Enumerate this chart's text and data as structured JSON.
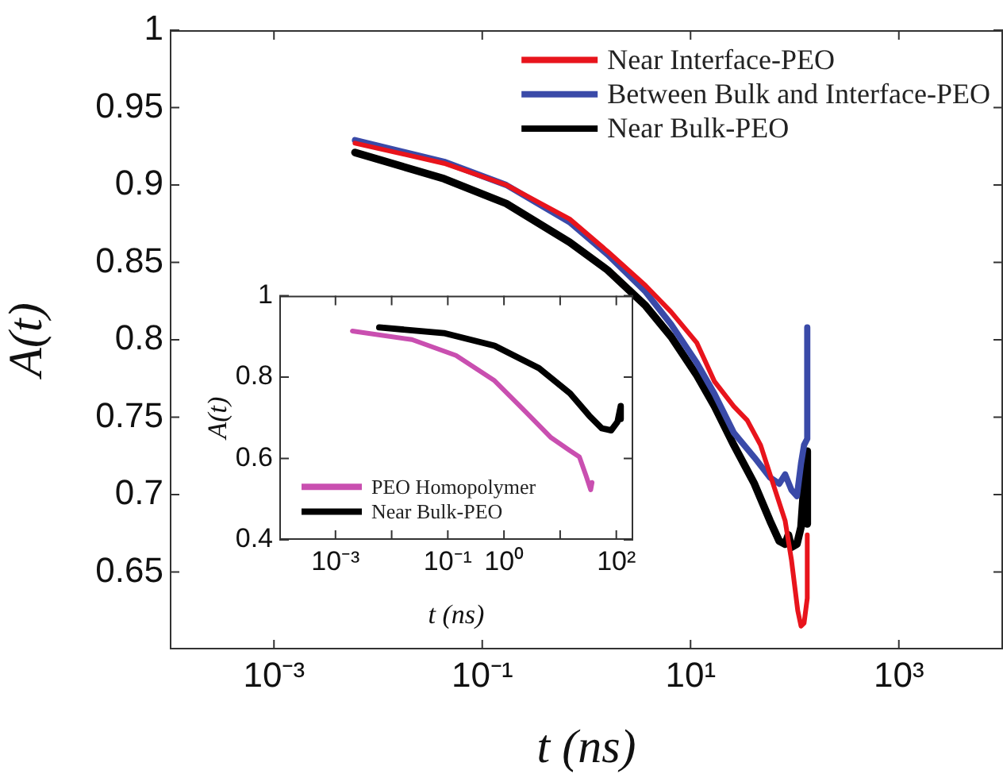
{
  "chart_data": [
    {
      "type": "line",
      "xlabel": "t (ns)",
      "ylabel": "A(t)",
      "log": "x",
      "xlim": [
        0.0001,
        10000
      ],
      "ylim": [
        0.6,
        1
      ],
      "xticks": [
        {
          "value": 0.001,
          "label": "10⁻³"
        },
        {
          "value": 0.1,
          "label": "10⁻¹"
        },
        {
          "value": 10,
          "label": "10¹"
        },
        {
          "value": 1000,
          "label": "10³"
        }
      ],
      "yticks": [
        0.65,
        0.7,
        0.75,
        0.8,
        0.85,
        0.9,
        0.95,
        1
      ],
      "grid": false,
      "legend": "top right",
      "marker": "none",
      "line_style": "solid",
      "series": [
        {
          "name": "Near Interface-PEO",
          "color": "#e8141c",
          "x": [
            0.006,
            0.043,
            0.17,
            0.69,
            1.6,
            3.7,
            6.5,
            11.5,
            17,
            26,
            35,
            47,
            62,
            81,
            93,
            107,
            115,
            123,
            132,
            132
          ],
          "values": [
            0.927,
            0.914,
            0.9,
            0.878,
            0.857,
            0.835,
            0.818,
            0.798,
            0.773,
            0.757,
            0.748,
            0.732,
            0.707,
            0.683,
            0.658,
            0.625,
            0.615,
            0.617,
            0.633,
            0.674
          ]
        },
        {
          "name": "Between Bulk and Interface-PEO",
          "color": "#3a4aa8",
          "x": [
            0.006,
            0.043,
            0.17,
            0.69,
            1.6,
            3.7,
            6.5,
            11.5,
            17,
            26,
            41,
            58,
            71,
            81,
            93,
            105,
            115,
            123,
            132,
            132
          ],
          "values": [
            0.929,
            0.915,
            0.9,
            0.876,
            0.855,
            0.831,
            0.81,
            0.785,
            0.765,
            0.74,
            0.724,
            0.711,
            0.707,
            0.713,
            0.703,
            0.699,
            0.72,
            0.732,
            0.736,
            0.808
          ]
        },
        {
          "name": "Near Bulk-PEO",
          "color": "#000000",
          "x": [
            0.006,
            0.043,
            0.17,
            0.69,
            1.6,
            3.7,
            6.5,
            11.5,
            17,
            26,
            41,
            58,
            71,
            81,
            87,
            93,
            105,
            115,
            123,
            132,
            132
          ],
          "values": [
            0.921,
            0.904,
            0.888,
            0.863,
            0.845,
            0.822,
            0.802,
            0.777,
            0.757,
            0.732,
            0.707,
            0.683,
            0.67,
            0.668,
            0.674,
            0.666,
            0.668,
            0.679,
            0.707,
            0.728,
            0.681
          ]
        }
      ]
    },
    {
      "type": "line",
      "xlabel": "t (ns)",
      "ylabel": "A(t)",
      "log": "x",
      "xlim": [
        0.0001,
        200
      ],
      "ylim": [
        0.4,
        1
      ],
      "xticks": [
        {
          "value": 0.001,
          "label": "10⁻³"
        },
        {
          "value": 0.01,
          "label": null
        },
        {
          "value": 0.1,
          "label": "10⁻¹"
        },
        {
          "value": 1,
          "label": "10⁰"
        },
        {
          "value": 10,
          "label": null
        },
        {
          "value": 100,
          "label": "10²"
        }
      ],
      "yticks": [
        0.4,
        0.6,
        0.8,
        1
      ],
      "grid": false,
      "legend": "bottom left",
      "marker": "none",
      "line_style": "solid",
      "series": [
        {
          "name": "PEO Homopolymer",
          "color": "#c94fb0",
          "x": [
            0.002,
            0.023,
            0.14,
            0.68,
            2.5,
            6.9,
            15,
            22,
            29,
            35,
            37
          ],
          "values": [
            0.913,
            0.892,
            0.853,
            0.791,
            0.713,
            0.651,
            0.619,
            0.604,
            0.557,
            0.523,
            0.541
          ]
        },
        {
          "name": "Near Bulk-PEO",
          "color": "#000000",
          "x": [
            0.006,
            0.085,
            0.68,
            4.2,
            15,
            33,
            55,
            81,
            105,
            120,
            120
          ],
          "values": [
            0.922,
            0.908,
            0.877,
            0.822,
            0.76,
            0.705,
            0.674,
            0.669,
            0.69,
            0.729,
            0.697
          ]
        }
      ]
    }
  ]
}
